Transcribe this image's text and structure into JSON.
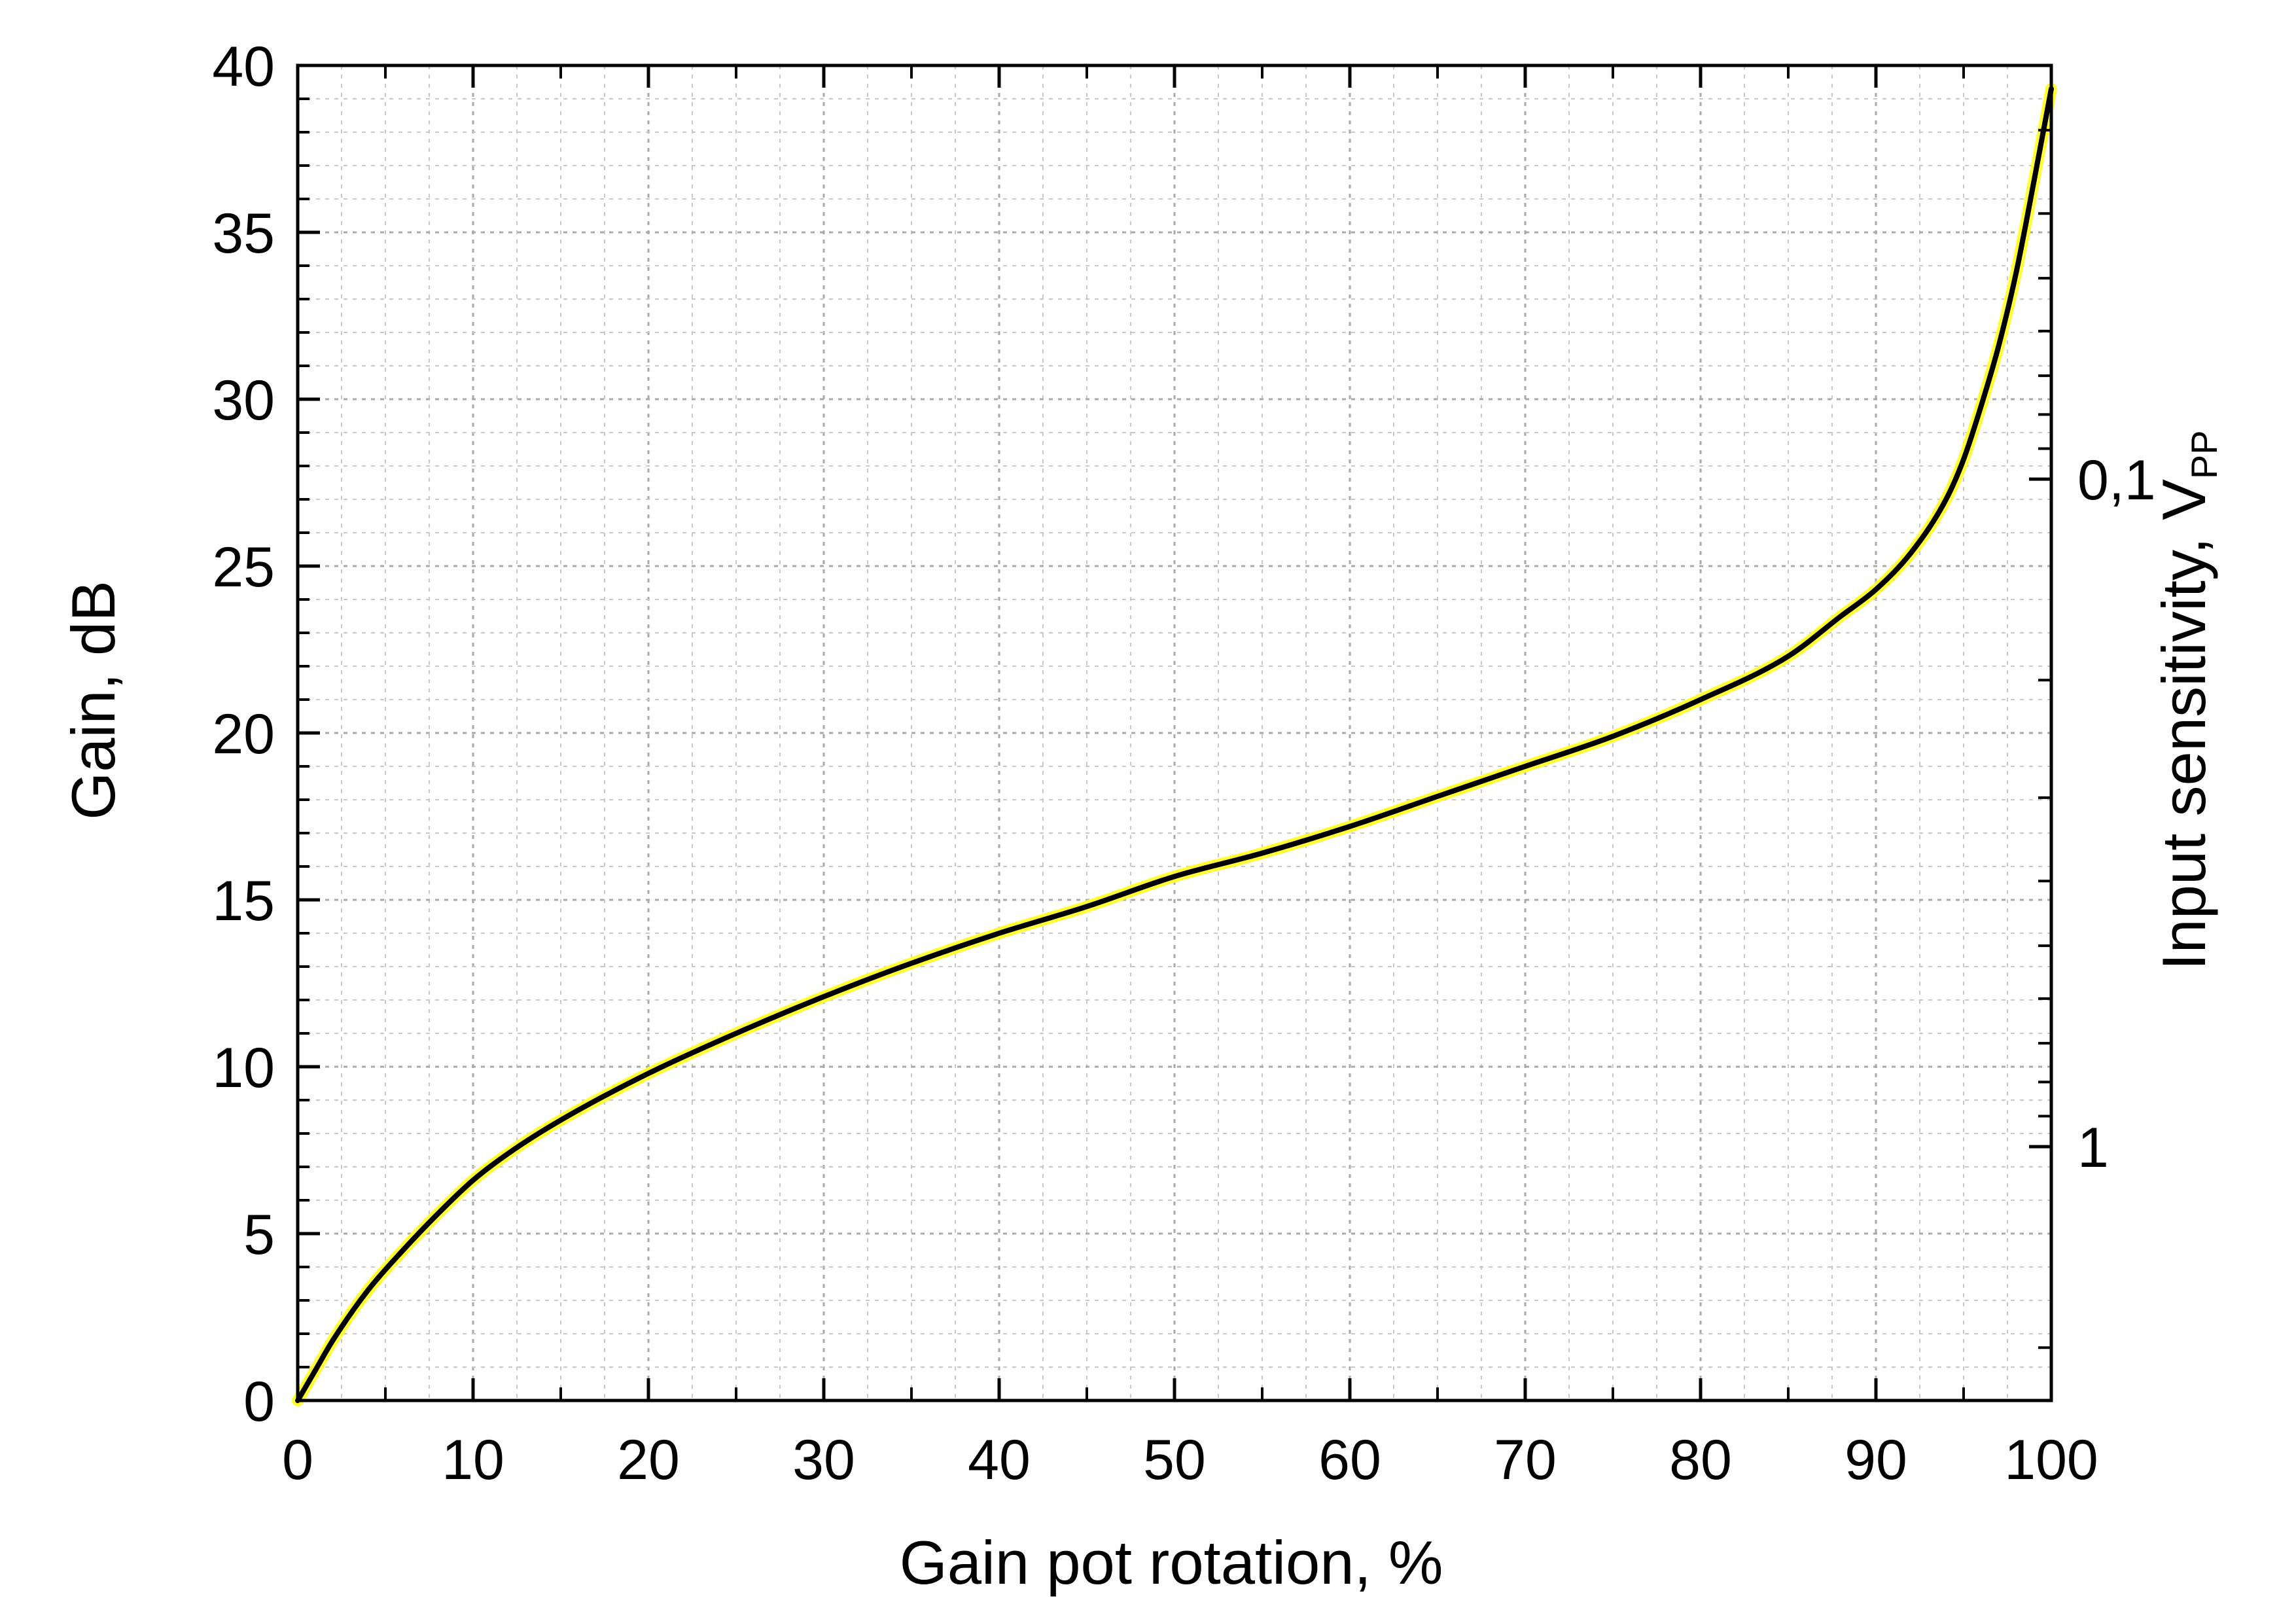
{
  "chart_data": {
    "type": "line",
    "xlabel": "Gain pot rotation, %",
    "ylabel": "Gain, dB",
    "y2label_main": "Input sensitivity, V",
    "y2label_sub": "PP",
    "xlim": [
      0,
      100
    ],
    "ylim": [
      0,
      40
    ],
    "y2_scale": "log",
    "y2_reference": {
      "value_at_gain_0db": 2.4,
      "db_per_decade": 20
    },
    "x_ticks": [
      "0",
      "10",
      "20",
      "30",
      "40",
      "50",
      "60",
      "70",
      "80",
      "90",
      "100"
    ],
    "y_ticks": [
      "0",
      "5",
      "10",
      "15",
      "20",
      "25",
      "30",
      "35",
      "40"
    ],
    "y2_ticks": [
      {
        "value": 0.1,
        "label": "0,1"
      },
      {
        "value": 1,
        "label": "1"
      }
    ],
    "grid": true,
    "colors": {
      "line": "#000000",
      "line_highlight": "#ffff33",
      "grid": "#c8c8c8"
    },
    "series": [
      {
        "x": [
          0,
          1,
          2,
          4,
          6,
          8,
          10,
          12,
          15,
          20,
          25,
          30,
          35,
          40,
          45,
          50,
          55,
          60,
          65,
          70,
          75,
          80,
          85,
          88,
          90,
          92,
          94,
          95,
          96,
          97,
          98,
          99,
          100
        ],
        "values": [
          0,
          0.9,
          1.8,
          3.3,
          4.5,
          5.6,
          6.6,
          7.4,
          8.4,
          9.8,
          11.0,
          12.1,
          13.1,
          14.0,
          14.8,
          15.7,
          16.4,
          17.2,
          18.1,
          19.0,
          19.9,
          21.0,
          22.3,
          23.5,
          24.3,
          25.4,
          27.0,
          28.2,
          29.8,
          31.6,
          33.8,
          36.5,
          39.3
        ]
      }
    ]
  }
}
